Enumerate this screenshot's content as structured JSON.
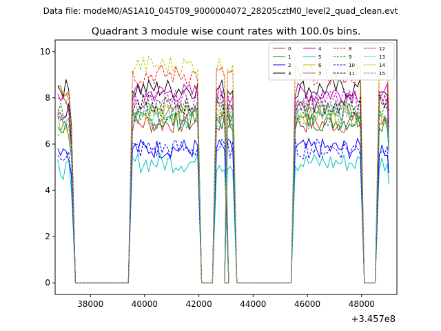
{
  "chart_data": {
    "type": "line",
    "suptitle": "Data file: modeM0/AS1A10_045T09_9000004072_28205cztM0_level2_quad_clean.evt",
    "title": "Quadrant 3 module wise count rates with 100.0s bins.",
    "xlabel": "",
    "ylabel": "",
    "x_offset_label": "+3.457e8",
    "xlim": [
      36700,
      49300
    ],
    "ylim": [
      -0.5,
      10.5
    ],
    "x_ticks": [
      38000,
      40000,
      42000,
      44000,
      46000,
      48000
    ],
    "x_tick_labels": [
      "38000",
      "40000",
      "42000",
      "44000",
      "46000",
      "48000"
    ],
    "y_ticks": [
      0,
      2,
      4,
      6,
      8,
      10
    ],
    "y_tick_labels": [
      "0",
      "2",
      "4",
      "6",
      "8",
      "10"
    ],
    "legend_position": "top-right",
    "time_bin_s": 100,
    "segments": [
      {
        "start": 36800,
        "end": 37300,
        "drop_end": 37450
      },
      {
        "start": 39550,
        "end": 41950,
        "rise_start": 39400,
        "drop_end": 42100
      },
      {
        "start": 42650,
        "end": 42950,
        "rise_start": 42500,
        "drop_end": 43100
      },
      {
        "start": 43050,
        "end": 43250,
        "rise_start": 42950,
        "drop_end": 43400
      },
      {
        "start": 45550,
        "end": 47950,
        "rise_start": 45400,
        "drop_end": 48100
      },
      {
        "start": 48650,
        "end": 49000,
        "rise_start": 48500,
        "drop_end": 49000
      }
    ],
    "series": [
      {
        "name": "0",
        "color": "#d62728",
        "dash": "solid",
        "level": 6.9,
        "first_level": 8.5
      },
      {
        "name": "1",
        "color": "#008000",
        "dash": "solid",
        "level": 7.0,
        "first_level": 6.8
      },
      {
        "name": "2",
        "color": "#0000ff",
        "dash": "solid",
        "level": 5.8,
        "first_level": 5.9
      },
      {
        "name": "3",
        "color": "#000000",
        "dash": "solid",
        "level": 8.4,
        "first_level": 8.5
      },
      {
        "name": "4",
        "color": "#bf00bf",
        "dash": "solid",
        "level": 8.2,
        "first_level": 7.8
      },
      {
        "name": "5",
        "color": "#00bfbf",
        "dash": "solid",
        "level": 5.2,
        "first_level": 5.0
      },
      {
        "name": "6",
        "color": "#bfbf00",
        "dash": "solid",
        "level": 7.3,
        "first_level": 7.0
      },
      {
        "name": "7",
        "color": "#808080",
        "dash": "solid",
        "level": 7.4,
        "first_level": 7.3
      },
      {
        "name": "8",
        "color": "#ff0000",
        "dash": "dashed",
        "level": 9.0,
        "first_level": 8.3
      },
      {
        "name": "9",
        "color": "#008000",
        "dash": "dashed",
        "level": 7.4,
        "first_level": 7.6
      },
      {
        "name": "10",
        "color": "#0000ff",
        "dash": "dashed",
        "level": 5.8,
        "first_level": 5.7
      },
      {
        "name": "11",
        "color": "#000000",
        "dash": "dashed",
        "level": 7.7,
        "first_level": 7.5
      },
      {
        "name": "12",
        "color": "#bf00bf",
        "dash": "dashed",
        "level": 7.9,
        "first_level": 7.4
      },
      {
        "name": "13",
        "color": "#00bfbf",
        "dash": "dashed",
        "level": 7.1,
        "first_level": 6.8
      },
      {
        "name": "14",
        "color": "#bfbf00",
        "dash": "dashed",
        "level": 9.4,
        "first_level": 8.2
      },
      {
        "name": "15",
        "color": "#808080",
        "dash": "dashed",
        "level": 7.6,
        "first_level": 7.3
      }
    ]
  }
}
